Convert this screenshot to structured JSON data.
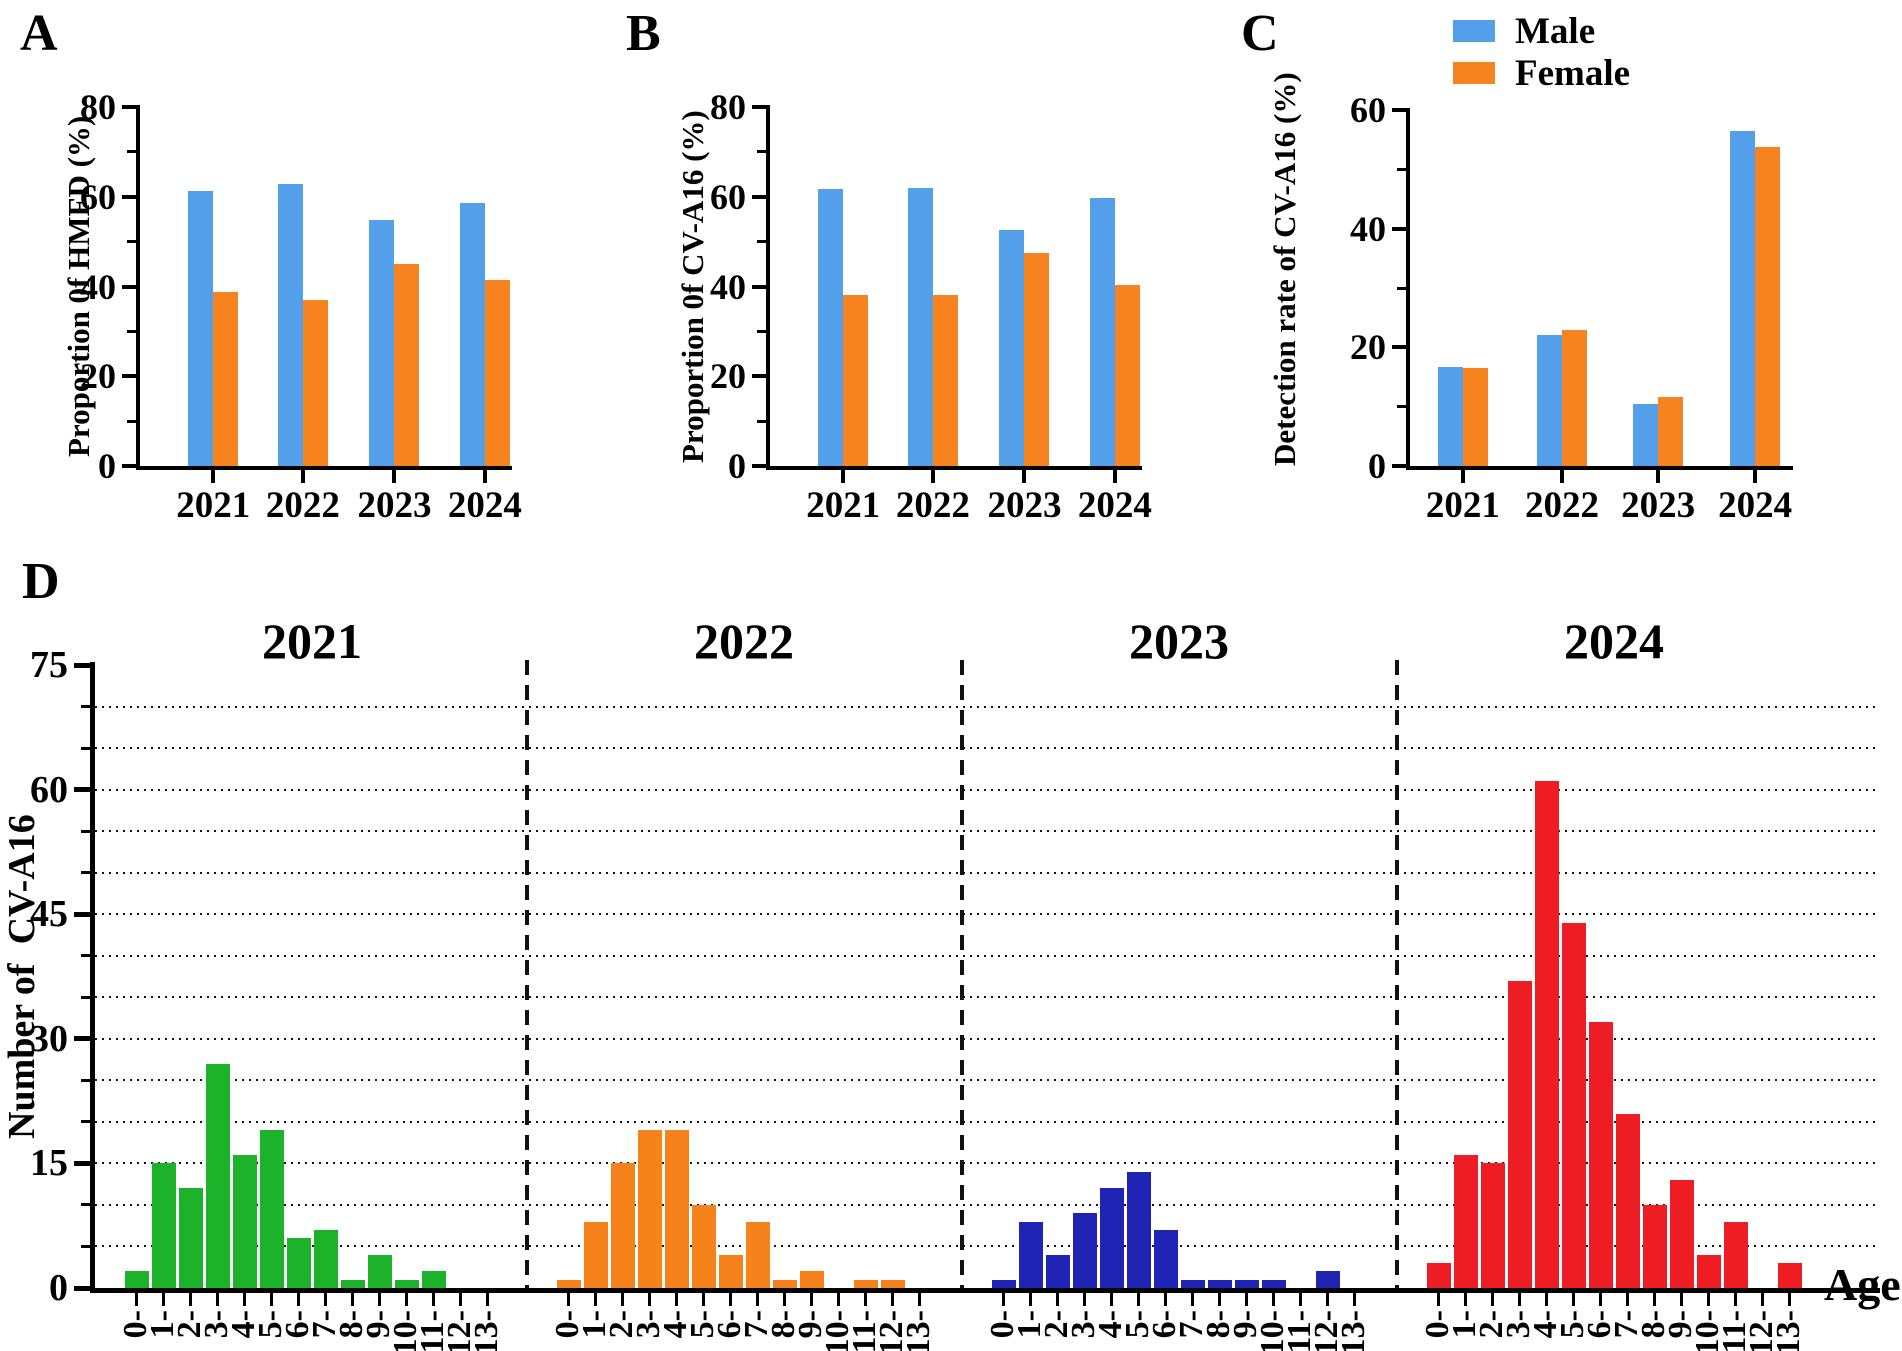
{
  "figure": {
    "background": "#ffffff",
    "text_color": "#000000"
  },
  "legend": {
    "position": "top-right",
    "items": [
      {
        "label": "Male",
        "color": "#549FE9"
      },
      {
        "label": "Female",
        "color": "#F6831D"
      }
    ]
  },
  "chart_data": [
    {
      "id": "A",
      "type": "bar",
      "panel_label": "A",
      "ylabel": "Proportion 0f HMFD (%)",
      "xlabel": "",
      "ylim": [
        0,
        80
      ],
      "yticks": [
        0,
        20,
        40,
        60,
        80
      ],
      "grid": false,
      "categories": [
        "2021",
        "2022",
        "2023",
        "2024"
      ],
      "series": [
        {
          "name": "Male",
          "color": "#549FE9",
          "values": [
            61.3,
            62.9,
            54.9,
            58.6
          ]
        },
        {
          "name": "Female",
          "color": "#F6831D",
          "values": [
            38.7,
            37.1,
            45.1,
            41.4
          ]
        }
      ]
    },
    {
      "id": "B",
      "type": "bar",
      "panel_label": "B",
      "ylabel": "Proportion 0f CV-A16 (%)",
      "xlabel": "",
      "ylim": [
        0,
        80
      ],
      "yticks": [
        0,
        20,
        40,
        60,
        80
      ],
      "grid": false,
      "categories": [
        "2021",
        "2022",
        "2023",
        "2024"
      ],
      "series": [
        {
          "name": "Male",
          "color": "#549FE9",
          "values": [
            61.8,
            62.0,
            52.5,
            59.7
          ]
        },
        {
          "name": "Female",
          "color": "#F6831D",
          "values": [
            38.2,
            38.0,
            47.5,
            40.3
          ]
        }
      ]
    },
    {
      "id": "C",
      "type": "bar",
      "panel_label": "C",
      "ylabel": "Detection rate of CV-A16 (%)",
      "xlabel": "",
      "ylim": [
        0,
        60
      ],
      "yticks": [
        0,
        20,
        40,
        60
      ],
      "grid": false,
      "categories": [
        "2021",
        "2022",
        "2023",
        "2024"
      ],
      "series": [
        {
          "name": "Male",
          "color": "#549FE9",
          "values": [
            16.7,
            22.0,
            10.4,
            56.4
          ]
        },
        {
          "name": "Female",
          "color": "#F6831D",
          "values": [
            16.5,
            23.0,
            11.6,
            53.8
          ]
        }
      ]
    },
    {
      "id": "D",
      "type": "bar",
      "panel_label": "D",
      "ylabel": "Number of  CV-A16",
      "xlabel": "Age",
      "ylim": [
        0,
        75
      ],
      "yticks": [
        0,
        15,
        30,
        45,
        60,
        75
      ],
      "grid": "horizontal dotted every 5 (5-70)",
      "grid_step": 5,
      "categories": [
        "0-",
        "1-",
        "2-",
        "3-",
        "4-",
        "5-",
        "6-",
        "7-",
        "8-",
        "9-",
        "10-",
        "11-",
        "12-",
        "13-"
      ],
      "series": [
        {
          "name": "2021",
          "color": "#1CB32B",
          "values": [
            2,
            15,
            12,
            27,
            16,
            19,
            6,
            7,
            1,
            4,
            1,
            2,
            0,
            0
          ]
        },
        {
          "name": "2022",
          "color": "#F6821C",
          "values": [
            1,
            8,
            15,
            19,
            19,
            10,
            4,
            8,
            1,
            2,
            0,
            1,
            1,
            0
          ]
        },
        {
          "name": "2023",
          "color": "#1F24B4",
          "values": [
            1,
            8,
            4,
            9,
            12,
            14,
            7,
            1,
            1,
            1,
            1,
            0,
            2,
            0
          ]
        },
        {
          "name": "2024",
          "color": "#EE1C23",
          "values": [
            3,
            16,
            15,
            37,
            61,
            44,
            32,
            21,
            10,
            13,
            4,
            8,
            0,
            3
          ]
        }
      ]
    }
  ]
}
